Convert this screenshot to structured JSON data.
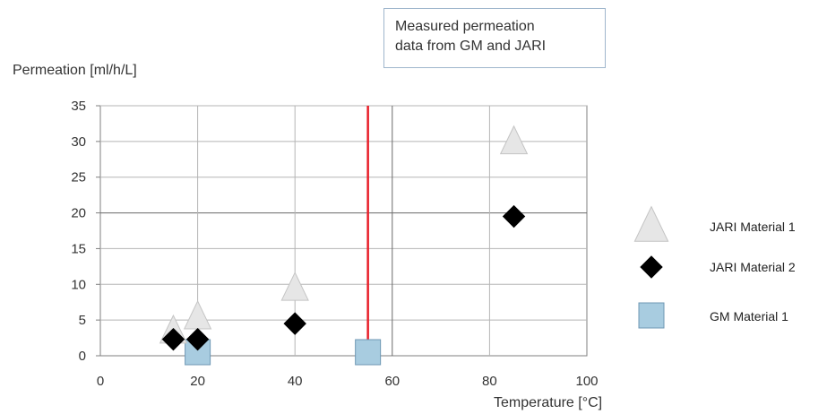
{
  "annotation": {
    "line1": "Measured permeation",
    "line2": "data from GM and JARI"
  },
  "chart_data": {
    "type": "scatter",
    "title": "",
    "xlabel": "Temperature [°C]",
    "ylabel": "Permeation [ml/h/L]",
    "xlim": [
      0,
      100
    ],
    "ylim": [
      0,
      35
    ],
    "x_ticks": [
      "0",
      "20",
      "40",
      "60",
      "80",
      "100"
    ],
    "y_ticks": [
      "0",
      "5",
      "10",
      "15",
      "20",
      "25",
      "30",
      "35"
    ],
    "grid": "on",
    "legend_position": "right",
    "reference_line": {
      "x": 55,
      "color": "#e8202a"
    },
    "series": [
      {
        "name": "JARI Material 1",
        "marker": "triangle",
        "color": "#e6e6e6",
        "points": [
          [
            15,
            3.5
          ],
          [
            20,
            5.5
          ],
          [
            40,
            9.5
          ],
          [
            85,
            30
          ]
        ]
      },
      {
        "name": "JARI Material 2",
        "marker": "diamond",
        "color": "#000000",
        "points": [
          [
            15,
            2.3
          ],
          [
            20,
            2.3
          ],
          [
            40,
            4.5
          ],
          [
            85,
            19.5
          ]
        ]
      },
      {
        "name": "GM Material 1",
        "marker": "square",
        "color": "#a8cce0",
        "points": [
          [
            20,
            0.5
          ],
          [
            55,
            0.5
          ]
        ]
      }
    ]
  }
}
